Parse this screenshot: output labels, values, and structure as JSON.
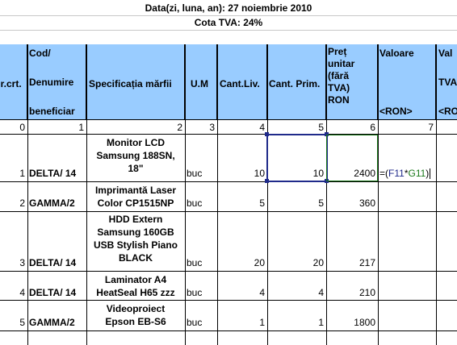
{
  "title_date": "Data(zi, luna, an): 27 noiembrie 2010",
  "title_tva": "Cota TVA: 24%",
  "headers": {
    "nr": "Nr.crt.",
    "cod_1": "Cod/",
    "cod_2": "Denumire",
    "cod_3": "beneficiar",
    "spec": "Specificația mărfii",
    "um": "U.M",
    "cant_liv": "Cant.Liv.",
    "cant_prim": "Cant. Prim.",
    "pret_1": "Preț",
    "pret_2": "unitar",
    "pret_3": "(fără",
    "pret_4": "TVA)",
    "pret_5": "RON",
    "valoare_1": "Valoare",
    "valoare_2": "<RON>",
    "valtva_1": "Val",
    "valtva_2": "TVA",
    "valtva_3": "<RO"
  },
  "index_row": [
    "0",
    "1",
    "2",
    "3",
    "4",
    "5",
    "6",
    "7"
  ],
  "rows": [
    {
      "nr": "1",
      "cod": "DELTA/ 14",
      "spec_lines": [
        "Monitor LCD",
        "Samsung 188SN,",
        "18\""
      ],
      "um": "buc",
      "cant_liv": "10",
      "cant_prim": "10",
      "pret": "2400"
    },
    {
      "nr": "2",
      "cod": "GAMMA/2",
      "spec_lines": [
        "Imprimantă Laser",
        "Color CP1515NP"
      ],
      "um": "buc",
      "cant_liv": "5",
      "cant_prim": "5",
      "pret": "360"
    },
    {
      "nr": "3",
      "cod": "DELTA/ 14",
      "spec_lines": [
        "HDD Extern",
        "Samsung 160GB",
        "USB Stylish Piano",
        "BLACK"
      ],
      "um": "buc",
      "cant_liv": "20",
      "cant_prim": "20",
      "pret": "217"
    },
    {
      "nr": "4",
      "cod": "DELTA/ 14",
      "spec_lines": [
        "Laminator A4",
        "HeatSeal H65 zzz"
      ],
      "um": "buc",
      "cant_liv": "4",
      "cant_prim": "4",
      "pret": "210"
    },
    {
      "nr": "5",
      "cod": "GAMMA/2",
      "spec_lines": [
        "Videoproiect",
        "Epson EB-S6"
      ],
      "um": "buc",
      "cant_liv": "1",
      "cant_prim": "1",
      "pret": "1800"
    }
  ],
  "formula": {
    "prefix": "=(",
    "ref_f": "F11",
    "op": "*",
    "ref_g": "G11",
    "suffix": ")"
  },
  "colors": {
    "header_bg": "#99ccff",
    "selection": "#1f2a8a",
    "ref_f": "#1f2a8a",
    "ref_g": "#1b7a1b"
  }
}
